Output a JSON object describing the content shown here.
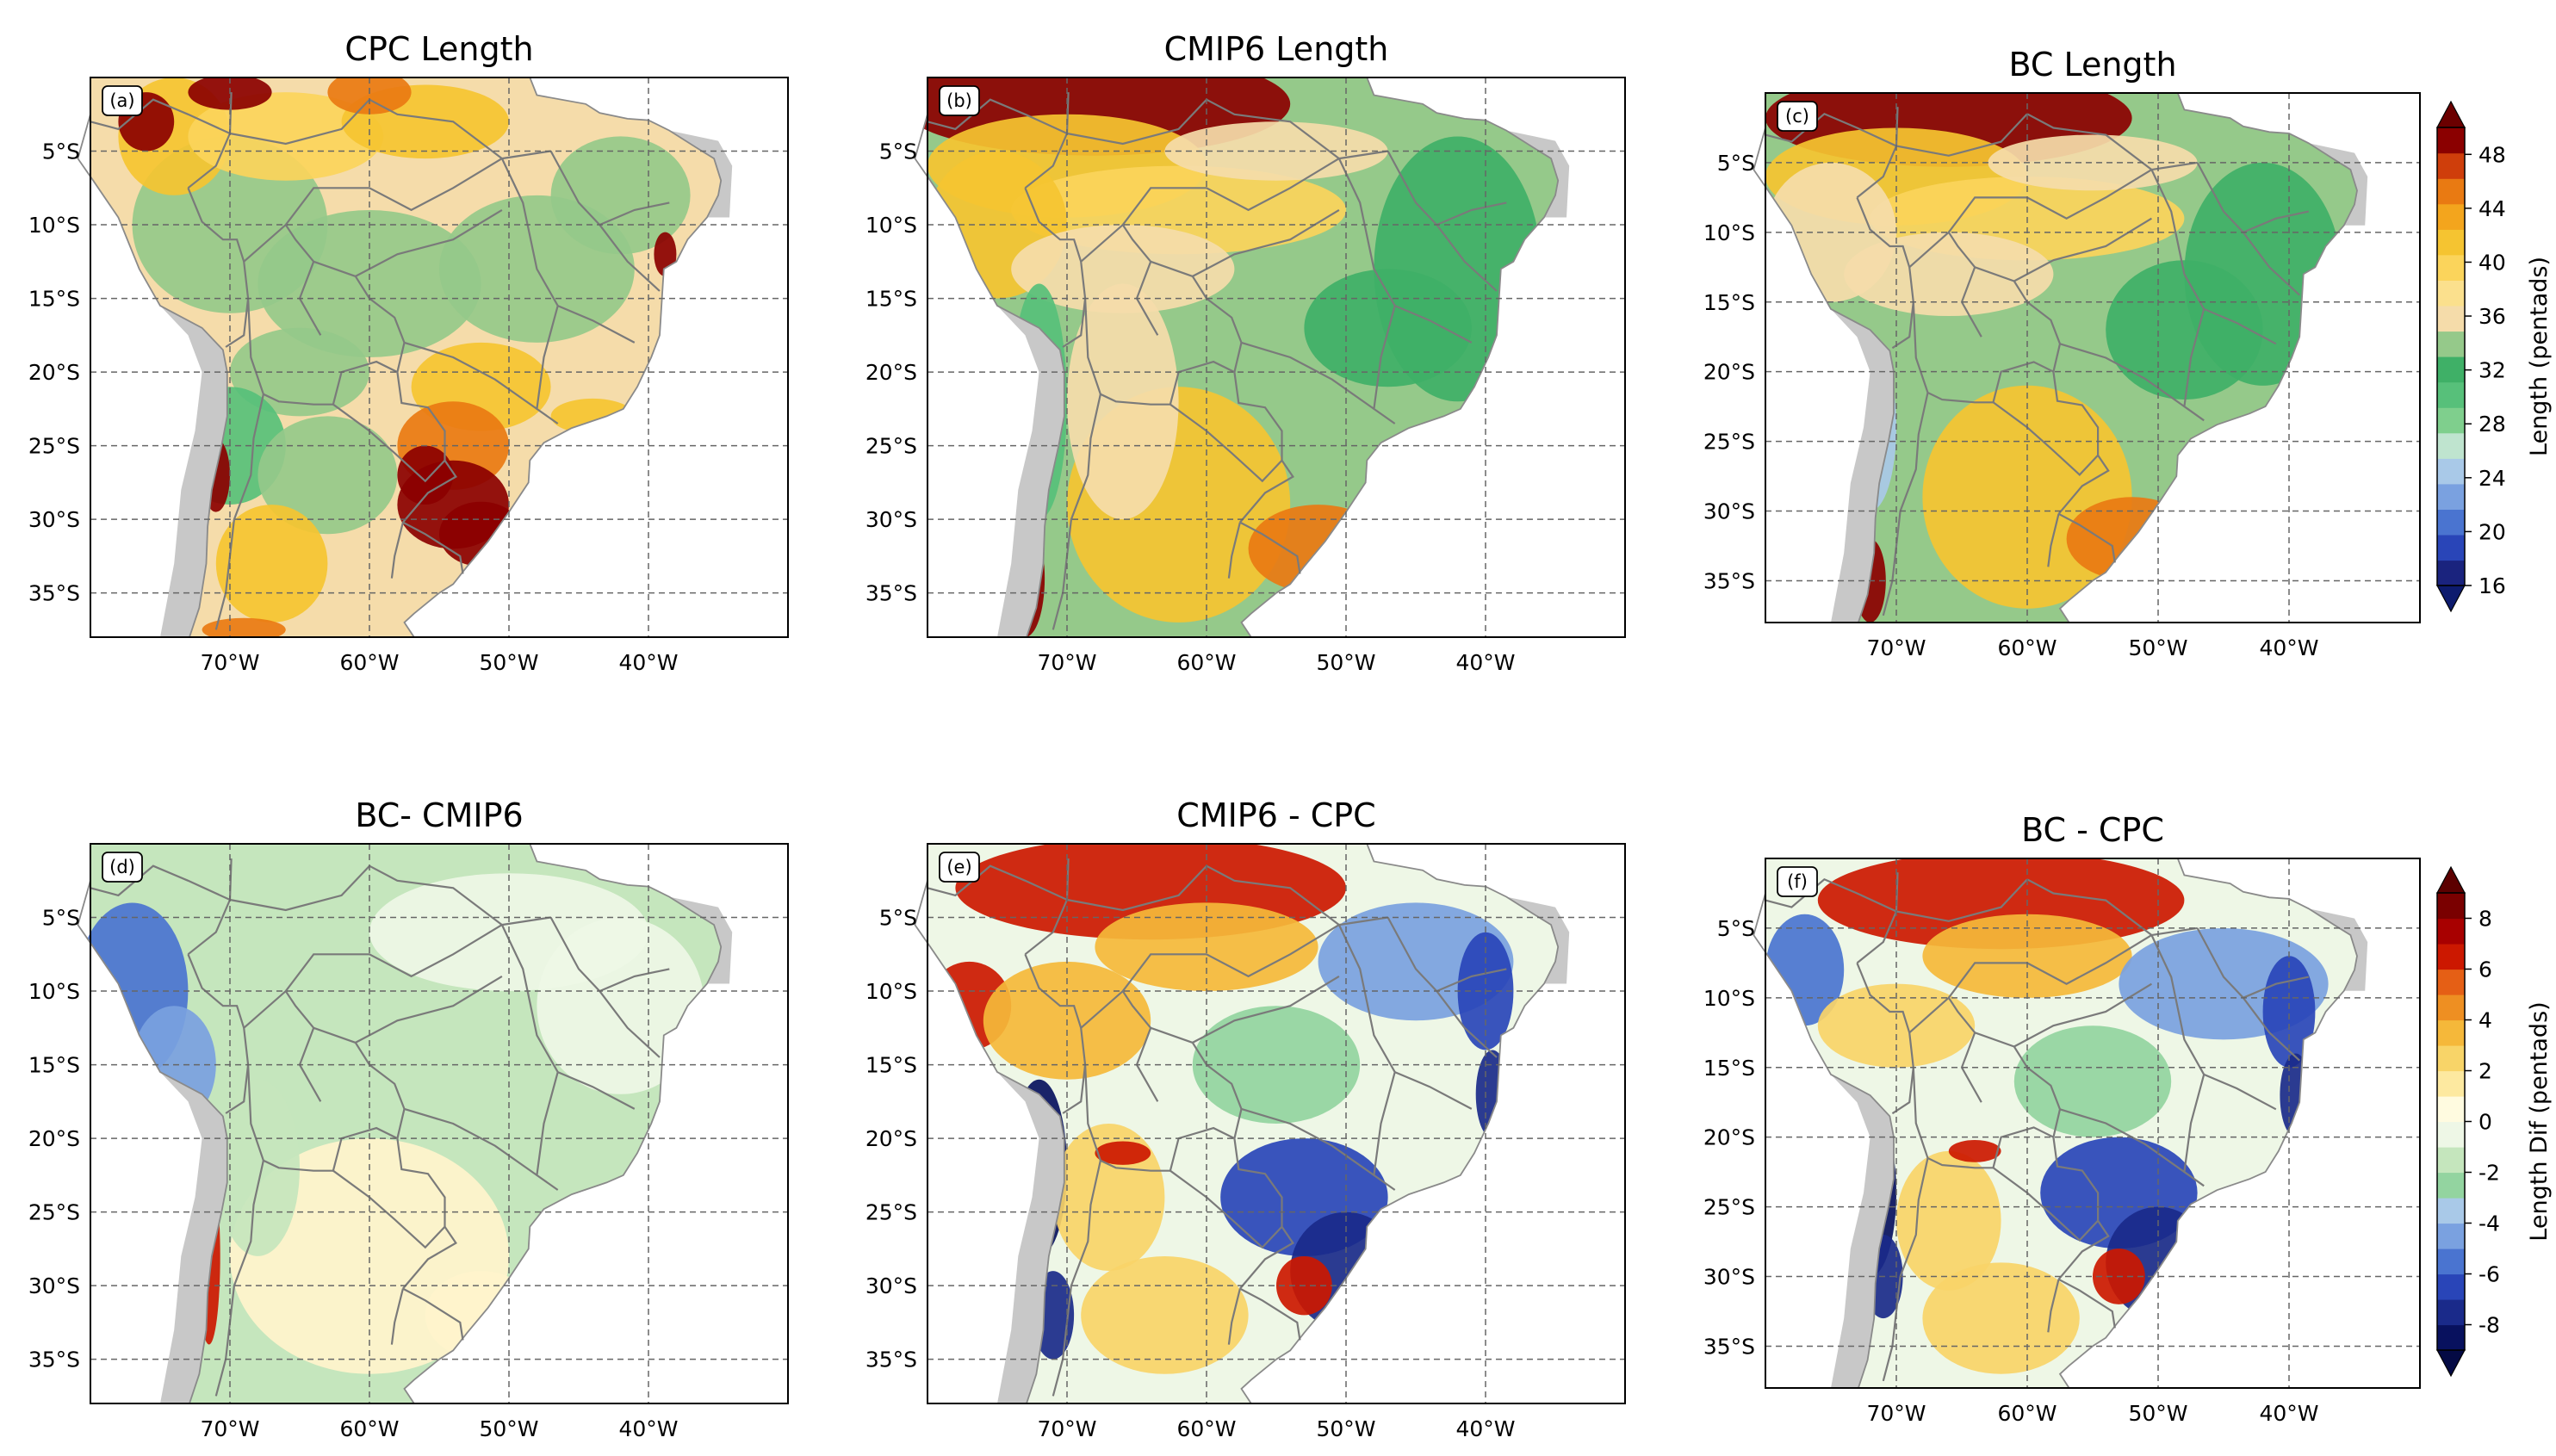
{
  "figure": {
    "lon_ticks": [
      "70°W",
      "60°W",
      "50°W",
      "40°W"
    ],
    "lat_ticks": [
      "5°S",
      "10°S",
      "15°S",
      "20°S",
      "25°S",
      "30°S",
      "35°S"
    ]
  },
  "chart_data": [
    {
      "type": "heatmap",
      "panel": "(a)",
      "title": "CPC Length",
      "variable": "length",
      "xlabel": "",
      "ylabel": "",
      "x_range_deg": [
        -80,
        -30
      ],
      "y_range_deg": [
        -38,
        0
      ],
      "dominant_colors": {
        "north_coast_and_andes": "#f5c431",
        "interior": "#95c98a",
        "southeast_hotspots": "#8b0000"
      }
    },
    {
      "type": "heatmap",
      "panel": "(b)",
      "title": "CMIP6 Length",
      "variable": "length",
      "xlabel": "",
      "ylabel": "",
      "x_range_deg": [
        -80,
        -30
      ],
      "y_range_deg": [
        -38,
        0
      ],
      "dominant_colors": {
        "north": "#8b0000",
        "northeast": "#3fb067",
        "interior": "#95c98a",
        "south": "#f5c431"
      }
    },
    {
      "type": "heatmap",
      "panel": "(c)",
      "title": "BC Length",
      "variable": "length",
      "xlabel": "",
      "ylabel": "",
      "x_range_deg": [
        -80,
        -30
      ],
      "y_range_deg": [
        -38,
        0
      ],
      "dominant_colors": {
        "north": "#8b0000",
        "northeast": "#3fb067",
        "interior": "#95c98a",
        "south": "#f5c431"
      }
    },
    {
      "type": "heatmap",
      "panel": "(d)",
      "title": "BC- CMIP6",
      "variable": "difference",
      "xlabel": "",
      "ylabel": "",
      "x_range_deg": [
        -80,
        -30
      ],
      "y_range_deg": [
        -38,
        0
      ],
      "dominant_colors": {
        "interior": "#c5e6bd",
        "west_coast": "#4a74d0",
        "andes": "#b30000"
      }
    },
    {
      "type": "heatmap",
      "panel": "(e)",
      "title": "CMIP6 - CPC",
      "variable": "difference",
      "xlabel": "",
      "ylabel": "",
      "x_range_deg": [
        -80,
        -30
      ],
      "y_range_deg": [
        -38,
        0
      ],
      "dominant_colors": {
        "north": "#cc1800",
        "northeast": "#2945b8",
        "southeast": "#1a2a8a",
        "south": "#f5c431"
      }
    },
    {
      "type": "heatmap",
      "panel": "(f)",
      "title": "BC - CPC",
      "variable": "difference",
      "xlabel": "",
      "ylabel": "",
      "x_range_deg": [
        -80,
        -30
      ],
      "y_range_deg": [
        -38,
        0
      ],
      "dominant_colors": {
        "north": "#cc1800",
        "northeast": "#2945b8",
        "southeast": "#1a2a8a",
        "south": "#f5c431"
      }
    }
  ],
  "colorbars": [
    {
      "label": "Length (pentads)",
      "ticks": [
        "16",
        "20",
        "24",
        "28",
        "32",
        "36",
        "40",
        "44",
        "48"
      ],
      "levels": [
        16,
        18,
        20,
        22,
        24,
        26,
        28,
        30,
        32,
        34,
        36,
        38,
        40,
        42,
        44,
        46,
        48,
        50
      ],
      "colors": [
        "#1a237e",
        "#2945b8",
        "#4a74d0",
        "#7aa1e0",
        "#a9c9e8",
        "#bfe4cf",
        "#7fcf8d",
        "#57c07a",
        "#3fb067",
        "#95c98a",
        "#f5dcaa",
        "#fbe08d",
        "#fbd45b",
        "#f5c431",
        "#f3a51d",
        "#e97a12",
        "#cf3e0b",
        "#8b0000"
      ],
      "extend_low_color": "#0d1b6e",
      "extend_high_color": "#6b0000"
    },
    {
      "label": "Length Dif (pentads)",
      "ticks": [
        "-8",
        "-6",
        "-4",
        "-2",
        "0",
        "2",
        "4",
        "6",
        "8"
      ],
      "levels": [
        -9,
        -8,
        -7,
        -6,
        -5,
        -4,
        -3,
        -2,
        -1,
        0,
        1,
        2,
        3,
        4,
        5,
        6,
        7,
        8,
        9
      ],
      "colors": [
        "#08115e",
        "#1a2a8a",
        "#2945b8",
        "#4a74d0",
        "#7aa1e0",
        "#a9c9e8",
        "#93d4a0",
        "#c5e6bd",
        "#eef7e6",
        "#fffbe0",
        "#fde9a0",
        "#f8d468",
        "#f5b83a",
        "#ee8f22",
        "#e55f15",
        "#cc1800",
        "#a80000",
        "#7a0000"
      ],
      "extend_low_color": "#040a44",
      "extend_high_color": "#5c0000"
    }
  ]
}
